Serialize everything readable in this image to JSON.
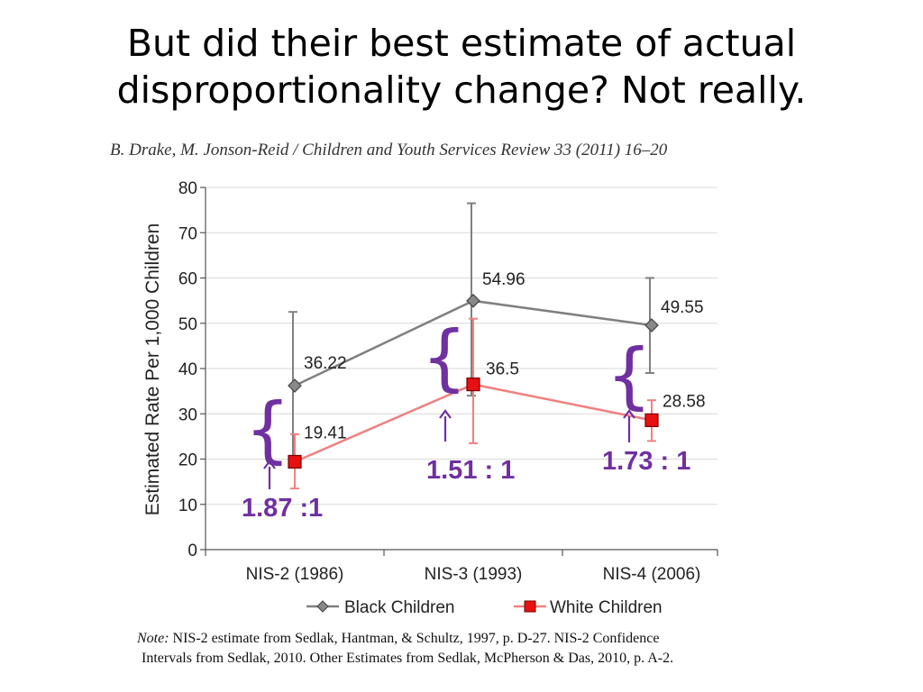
{
  "slide": {
    "title_line1": "But did their best estimate of actual",
    "title_line2": "disproportionality change?  Not really.",
    "citation": "B. Drake, M. Jonson-Reid / Children and Youth Services Review 33 (2011) 16–20",
    "note_label": "Note:",
    "note_line1": " NIS-2 estimate from Sedlak, Hantman, & Schultz, 1997, p. D-27. NIS-2 Confidence",
    "note_line2": "Intervals from Sedlak, 2010.  Other Estimates from Sedlak, McPherson & Das, 2010, p. A-2."
  },
  "chart_data": {
    "type": "line",
    "ylabel": "Estimated Rate Per 1,000 Children",
    "xlabel": "",
    "categories": [
      "NIS-2 (1986)",
      "NIS-3 (1993)",
      "NIS-4 (2006)"
    ],
    "ylim": [
      0,
      80
    ],
    "yticks": [
      0,
      10,
      20,
      30,
      40,
      50,
      60,
      70,
      80
    ],
    "grid": true,
    "legend": "bottom",
    "series": [
      {
        "name": "Black Children",
        "values": [
          36.22,
          54.96,
          49.55
        ],
        "value_labels": [
          "36.22",
          "54.96",
          "49.55"
        ],
        "ci_low": [
          20,
          34,
          39
        ],
        "ci_high": [
          52.5,
          76.5,
          60
        ],
        "color": "#808080",
        "marker": "diamond"
      },
      {
        "name": "White Children",
        "values": [
          19.41,
          36.5,
          28.58
        ],
        "value_labels": [
          "19.41",
          "36.5",
          "28.58"
        ],
        "ci_low": [
          13.5,
          23.5,
          24
        ],
        "ci_high": [
          25.5,
          51,
          33
        ],
        "color": "#f08080",
        "marker": "square",
        "marker_fill": "#e81010"
      }
    ],
    "annotations": [
      {
        "text": "1.87 :1"
      },
      {
        "text": "1.51 : 1"
      },
      {
        "text": "1.73 : 1"
      }
    ],
    "annotation_color": "#7030a0"
  }
}
